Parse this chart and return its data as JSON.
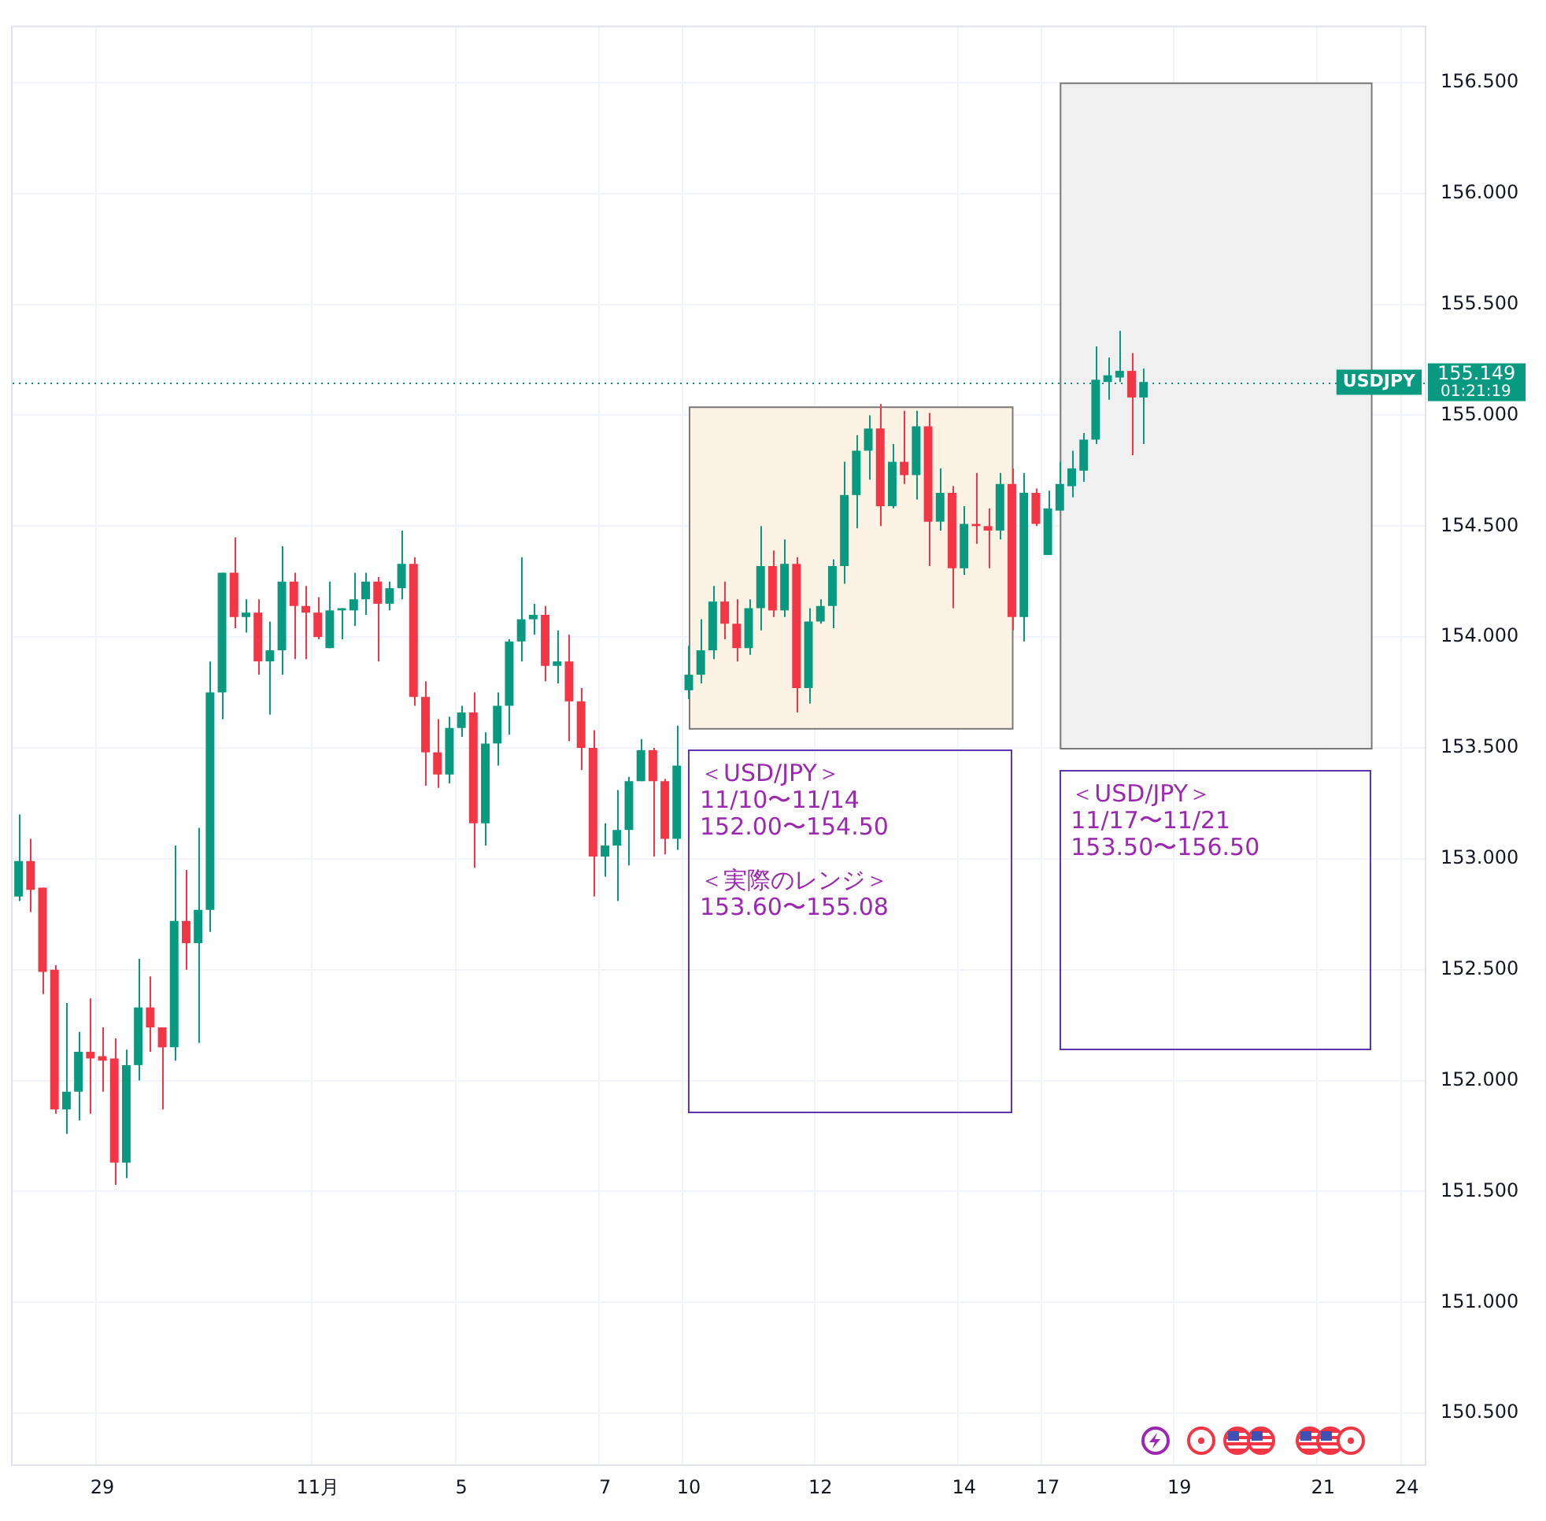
{
  "chart_data": {
    "type": "candlestick",
    "categories": [
      null,
      null,
      null,
      null,
      null,
      null,
      null,
      "29",
      null,
      null,
      null,
      null,
      null,
      null,
      null,
      null,
      null,
      null,
      null,
      null,
      null,
      null,
      null,
      null,
      null,
      "11月",
      null,
      null,
      null,
      null,
      null,
      null,
      null,
      null,
      null,
      null,
      null,
      "5",
      null,
      null,
      null,
      null,
      null,
      null,
      null,
      null,
      null,
      null,
      null,
      "7",
      null,
      null,
      null,
      null,
      null,
      null,
      "10",
      null,
      null,
      null,
      null,
      null,
      null,
      null,
      null,
      null,
      null,
      "12",
      null,
      null,
      null,
      null,
      null,
      null,
      null,
      null,
      null,
      null,
      null,
      "14",
      null,
      null,
      null,
      null,
      null,
      null,
      "17",
      null,
      null,
      null,
      null,
      null,
      null,
      null,
      null,
      null,
      null,
      "19",
      null,
      null,
      null,
      null,
      null,
      null,
      null,
      null,
      null,
      null,
      null,
      "21",
      null,
      null,
      null,
      null,
      null,
      null,
      "24",
      null
    ],
    "ohlc": [
      [
        152.83,
        153.2,
        152.81,
        152.99
      ],
      [
        152.99,
        153.09,
        152.76,
        152.86
      ],
      [
        152.87,
        152.87,
        152.39,
        152.49
      ],
      [
        152.5,
        152.52,
        151.85,
        151.87
      ],
      [
        151.87,
        152.35,
        151.76,
        151.95
      ],
      [
        151.95,
        152.22,
        151.82,
        152.13
      ],
      [
        152.13,
        152.37,
        151.85,
        152.1
      ],
      [
        152.11,
        152.24,
        151.95,
        152.09
      ],
      [
        152.1,
        152.19,
        151.53,
        151.63
      ],
      [
        151.63,
        152.14,
        151.56,
        152.07
      ],
      [
        152.07,
        152.55,
        152.0,
        152.33
      ],
      [
        152.33,
        152.47,
        152.13,
        152.24
      ],
      [
        152.24,
        152.24,
        151.87,
        152.15
      ],
      [
        152.15,
        153.06,
        152.09,
        152.72
      ],
      [
        152.72,
        152.95,
        152.5,
        152.62
      ],
      [
        152.62,
        153.14,
        152.17,
        152.77
      ],
      [
        152.77,
        153.89,
        152.67,
        153.75
      ],
      [
        153.75,
        154.29,
        153.63,
        154.29
      ],
      [
        154.29,
        154.45,
        154.04,
        154.09
      ],
      [
        154.09,
        154.17,
        154.02,
        154.11
      ],
      [
        154.11,
        154.17,
        153.83,
        153.89
      ],
      [
        153.89,
        154.07,
        153.65,
        153.94
      ],
      [
        153.94,
        154.41,
        153.83,
        154.25
      ],
      [
        154.25,
        154.29,
        153.9,
        154.14
      ],
      [
        154.14,
        154.23,
        153.9,
        154.11
      ],
      [
        154.11,
        154.18,
        153.99,
        154.0
      ],
      [
        153.95,
        154.25,
        153.95,
        154.12
      ],
      [
        154.12,
        154.13,
        153.99,
        154.13
      ],
      [
        154.12,
        154.29,
        154.05,
        154.17
      ],
      [
        154.17,
        154.29,
        154.1,
        154.25
      ],
      [
        154.25,
        154.27,
        153.89,
        154.15
      ],
      [
        154.15,
        154.25,
        154.12,
        154.22
      ],
      [
        154.22,
        154.48,
        154.17,
        154.33
      ],
      [
        154.33,
        154.36,
        153.69,
        153.73
      ],
      [
        153.73,
        153.8,
        153.33,
        153.48
      ],
      [
        153.48,
        153.63,
        153.32,
        153.38
      ],
      [
        153.38,
        153.64,
        153.34,
        153.59
      ],
      [
        153.59,
        153.69,
        153.55,
        153.66
      ],
      [
        153.66,
        153.75,
        152.96,
        153.16
      ],
      [
        153.16,
        153.57,
        153.06,
        153.52
      ],
      [
        153.52,
        153.75,
        153.42,
        153.69
      ],
      [
        153.69,
        153.99,
        153.56,
        153.98
      ],
      [
        153.98,
        154.36,
        153.89,
        154.08
      ],
      [
        154.08,
        154.15,
        154.01,
        154.1
      ],
      [
        154.1,
        154.14,
        153.8,
        153.87
      ],
      [
        153.87,
        154.03,
        153.79,
        153.89
      ],
      [
        153.89,
        154.01,
        153.53,
        153.71
      ],
      [
        153.71,
        153.77,
        153.4,
        153.5
      ],
      [
        153.5,
        153.58,
        152.83,
        153.01
      ],
      [
        153.01,
        153.16,
        152.92,
        153.06
      ],
      [
        153.06,
        153.31,
        152.81,
        153.13
      ],
      [
        153.13,
        153.37,
        152.97,
        153.35
      ],
      [
        153.35,
        153.54,
        153.35,
        153.49
      ],
      [
        153.49,
        153.5,
        153.01,
        153.35
      ],
      [
        153.35,
        153.36,
        153.02,
        153.09
      ],
      [
        153.09,
        153.6,
        153.04,
        153.42
      ],
      [
        153.76,
        153.96,
        153.72,
        153.83
      ],
      [
        153.83,
        154.08,
        153.79,
        153.94
      ],
      [
        153.94,
        154.23,
        153.9,
        154.16
      ],
      [
        154.16,
        154.25,
        153.99,
        154.06
      ],
      [
        154.06,
        154.17,
        153.89,
        153.95
      ],
      [
        153.95,
        154.17,
        153.92,
        154.13
      ],
      [
        154.13,
        154.5,
        154.03,
        154.32
      ],
      [
        154.32,
        154.39,
        154.09,
        154.12
      ],
      [
        154.12,
        154.44,
        154.09,
        154.33
      ],
      [
        154.33,
        154.36,
        153.66,
        153.77
      ],
      [
        153.77,
        154.13,
        153.7,
        154.07
      ],
      [
        154.07,
        154.17,
        154.06,
        154.14
      ],
      [
        154.14,
        154.35,
        154.04,
        154.32
      ],
      [
        154.32,
        154.79,
        154.24,
        154.64
      ],
      [
        154.64,
        154.91,
        154.49,
        154.84
      ],
      [
        154.84,
        155.0,
        154.71,
        154.94
      ],
      [
        154.94,
        155.05,
        154.5,
        154.59
      ],
      [
        154.59,
        154.87,
        154.58,
        154.79
      ],
      [
        154.79,
        155.02,
        154.69,
        154.73
      ],
      [
        154.73,
        155.02,
        154.62,
        154.95
      ],
      [
        154.95,
        155.01,
        154.32,
        154.52
      ],
      [
        154.52,
        154.76,
        154.48,
        154.65
      ],
      [
        154.65,
        154.68,
        154.13,
        154.31
      ],
      [
        154.31,
        154.59,
        154.28,
        154.51
      ],
      [
        154.51,
        154.74,
        154.42,
        154.5
      ],
      [
        154.5,
        154.58,
        154.31,
        154.48
      ],
      [
        154.48,
        154.74,
        154.44,
        154.69
      ],
      [
        154.69,
        154.76,
        154.03,
        154.09
      ],
      [
        154.09,
        154.74,
        153.98,
        154.65
      ],
      [
        154.65,
        154.67,
        154.5,
        154.51
      ],
      [
        154.37,
        154.66,
        154.37,
        154.58
      ],
      [
        154.57,
        154.79,
        154.57,
        154.69
      ],
      [
        154.68,
        154.84,
        154.63,
        154.76
      ],
      [
        154.75,
        154.92,
        154.7,
        154.89
      ],
      [
        154.89,
        155.31,
        154.87,
        155.16
      ],
      [
        155.15,
        155.26,
        155.07,
        155.18
      ],
      [
        155.17,
        155.38,
        155.15,
        155.2
      ],
      [
        155.2,
        155.28,
        154.82,
        155.08
      ],
      [
        155.08,
        155.21,
        154.87,
        155.15
      ],
      null,
      null,
      null,
      null,
      null,
      null,
      null,
      null,
      null,
      null,
      null,
      null,
      null,
      null,
      null,
      null,
      null,
      null,
      null,
      null,
      null,
      null,
      null
    ],
    "colors": [
      "#089981",
      "#f23645",
      "#f23645",
      "#f23645",
      "#089981",
      "#089981",
      "#f23645",
      "#f23645",
      "#f23645",
      "#089981",
      "#089981",
      "#f23645",
      "#f23645",
      "#089981",
      "#f23645",
      "#089981",
      "#089981",
      "#089981",
      "#f23645",
      "#089981",
      "#f23645",
      "#089981",
      "#089981",
      "#f23645",
      "#f23645",
      "#f23645",
      "#089981",
      "#089981",
      "#089981",
      "#089981",
      "#f23645",
      "#089981",
      "#089981",
      "#f23645",
      "#f23645",
      "#f23645",
      "#089981",
      "#089981",
      "#f23645",
      "#089981",
      "#089981",
      "#089981",
      "#089981",
      "#089981",
      "#f23645",
      "#089981",
      "#f23645",
      "#f23645",
      "#f23645",
      "#089981",
      "#089981",
      "#089981",
      "#089981",
      "#f23645",
      "#f23645",
      "#089981",
      "#089981",
      "#089981",
      "#089981",
      "#f23645",
      "#f23645",
      "#089981",
      "#089981",
      "#f23645",
      "#089981",
      "#f23645",
      "#089981",
      "#089981",
      "#089981",
      "#089981",
      "#089981",
      "#089981",
      "#f23645",
      "#089981",
      "#f23645",
      "#089981",
      "#f23645",
      "#089981",
      "#f23645",
      "#089981",
      "#f23645",
      "#f23645",
      "#089981",
      "#f23645",
      "#089981",
      "#f23645",
      "#089981",
      "#089981",
      "#089981",
      "#089981",
      "#089981",
      "#089981",
      "#089981",
      "#f23645",
      "#089981",
      null,
      null,
      null,
      null,
      null,
      null,
      null,
      null,
      null,
      null,
      null,
      null,
      null,
      null,
      null,
      null,
      null,
      null,
      null,
      null,
      null,
      null,
      null
    ],
    "ylim": [
      150.27,
      156.75
    ],
    "yticks": [
      {
        "value": 150.5,
        "label": "150.500"
      },
      {
        "value": 151,
        "label": "151.000"
      },
      {
        "value": 151.5,
        "label": "151.500"
      },
      {
        "value": 152,
        "label": "152.000"
      },
      {
        "value": 152.5,
        "label": "152.500"
      },
      {
        "value": 153,
        "label": "153.000"
      },
      {
        "value": 153.5,
        "label": "153.500"
      },
      {
        "value": 154,
        "label": "154.000"
      },
      {
        "value": 154.5,
        "label": "154.500"
      },
      {
        "value": 155,
        "label": "155.000"
      },
      {
        "value": 155.5,
        "label": "155.500"
      },
      {
        "value": 156,
        "label": "156.000"
      },
      {
        "value": 156.5,
        "label": "156.500"
      }
    ],
    "grid": true,
    "legend": false,
    "bands": [
      {
        "axis": "y",
        "from": 153.59,
        "to": 155.04,
        "color": "#fdf3e4"
      },
      {
        "axis": "y",
        "from": 153.5,
        "to": 156.5,
        "color": "#f0f0f0"
      }
    ],
    "ref_lines": [
      {
        "axis": "y",
        "value": 155.149,
        "label": "USDJPY",
        "color": "#089981",
        "line_style": "dotted"
      }
    ],
    "annotations": [
      "＜USD/JPY＞\n11/10〜11/14\n152.00〜154.50\n\n＜実際のレンジ＞\n153.60〜155.08",
      "＜USD/JPY＞\n11/17〜11/21\n153.50〜156.50",
      "01:21:19",
      "155.149"
    ]
  }
}
